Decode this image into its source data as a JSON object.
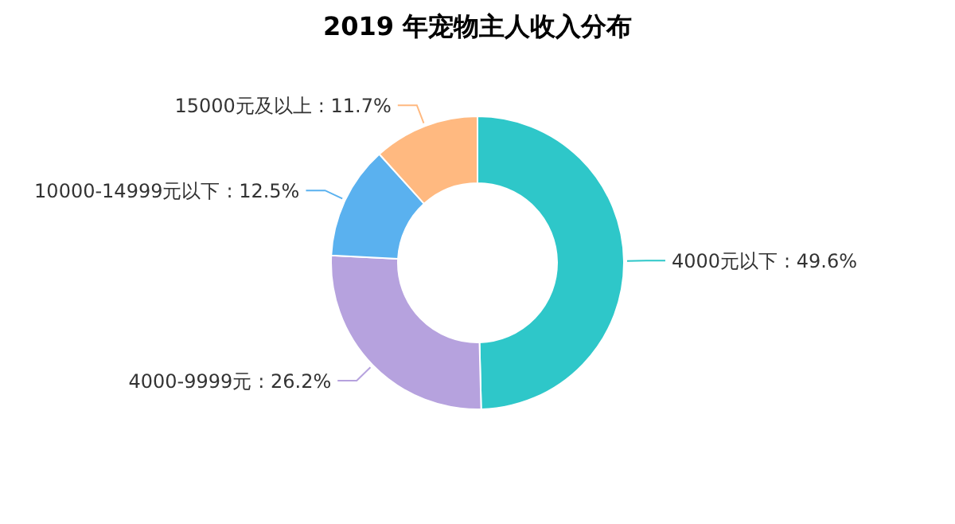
{
  "chart_data": {
    "type": "donut",
    "title": "2019 年宠物主人收入分布",
    "categories": [
      "4000元以下",
      "4000-9999元",
      "10000-14999元以下",
      "15000元及以上"
    ],
    "values": [
      49.6,
      26.2,
      12.5,
      11.7
    ],
    "colors": [
      "#2ec7c9",
      "#b6a2de",
      "#5ab1ef",
      "#ffb980"
    ],
    "value_labels": [
      ": 49.6%",
      ": 26.2%",
      ": 12.5%",
      ": 11.7%"
    ]
  }
}
